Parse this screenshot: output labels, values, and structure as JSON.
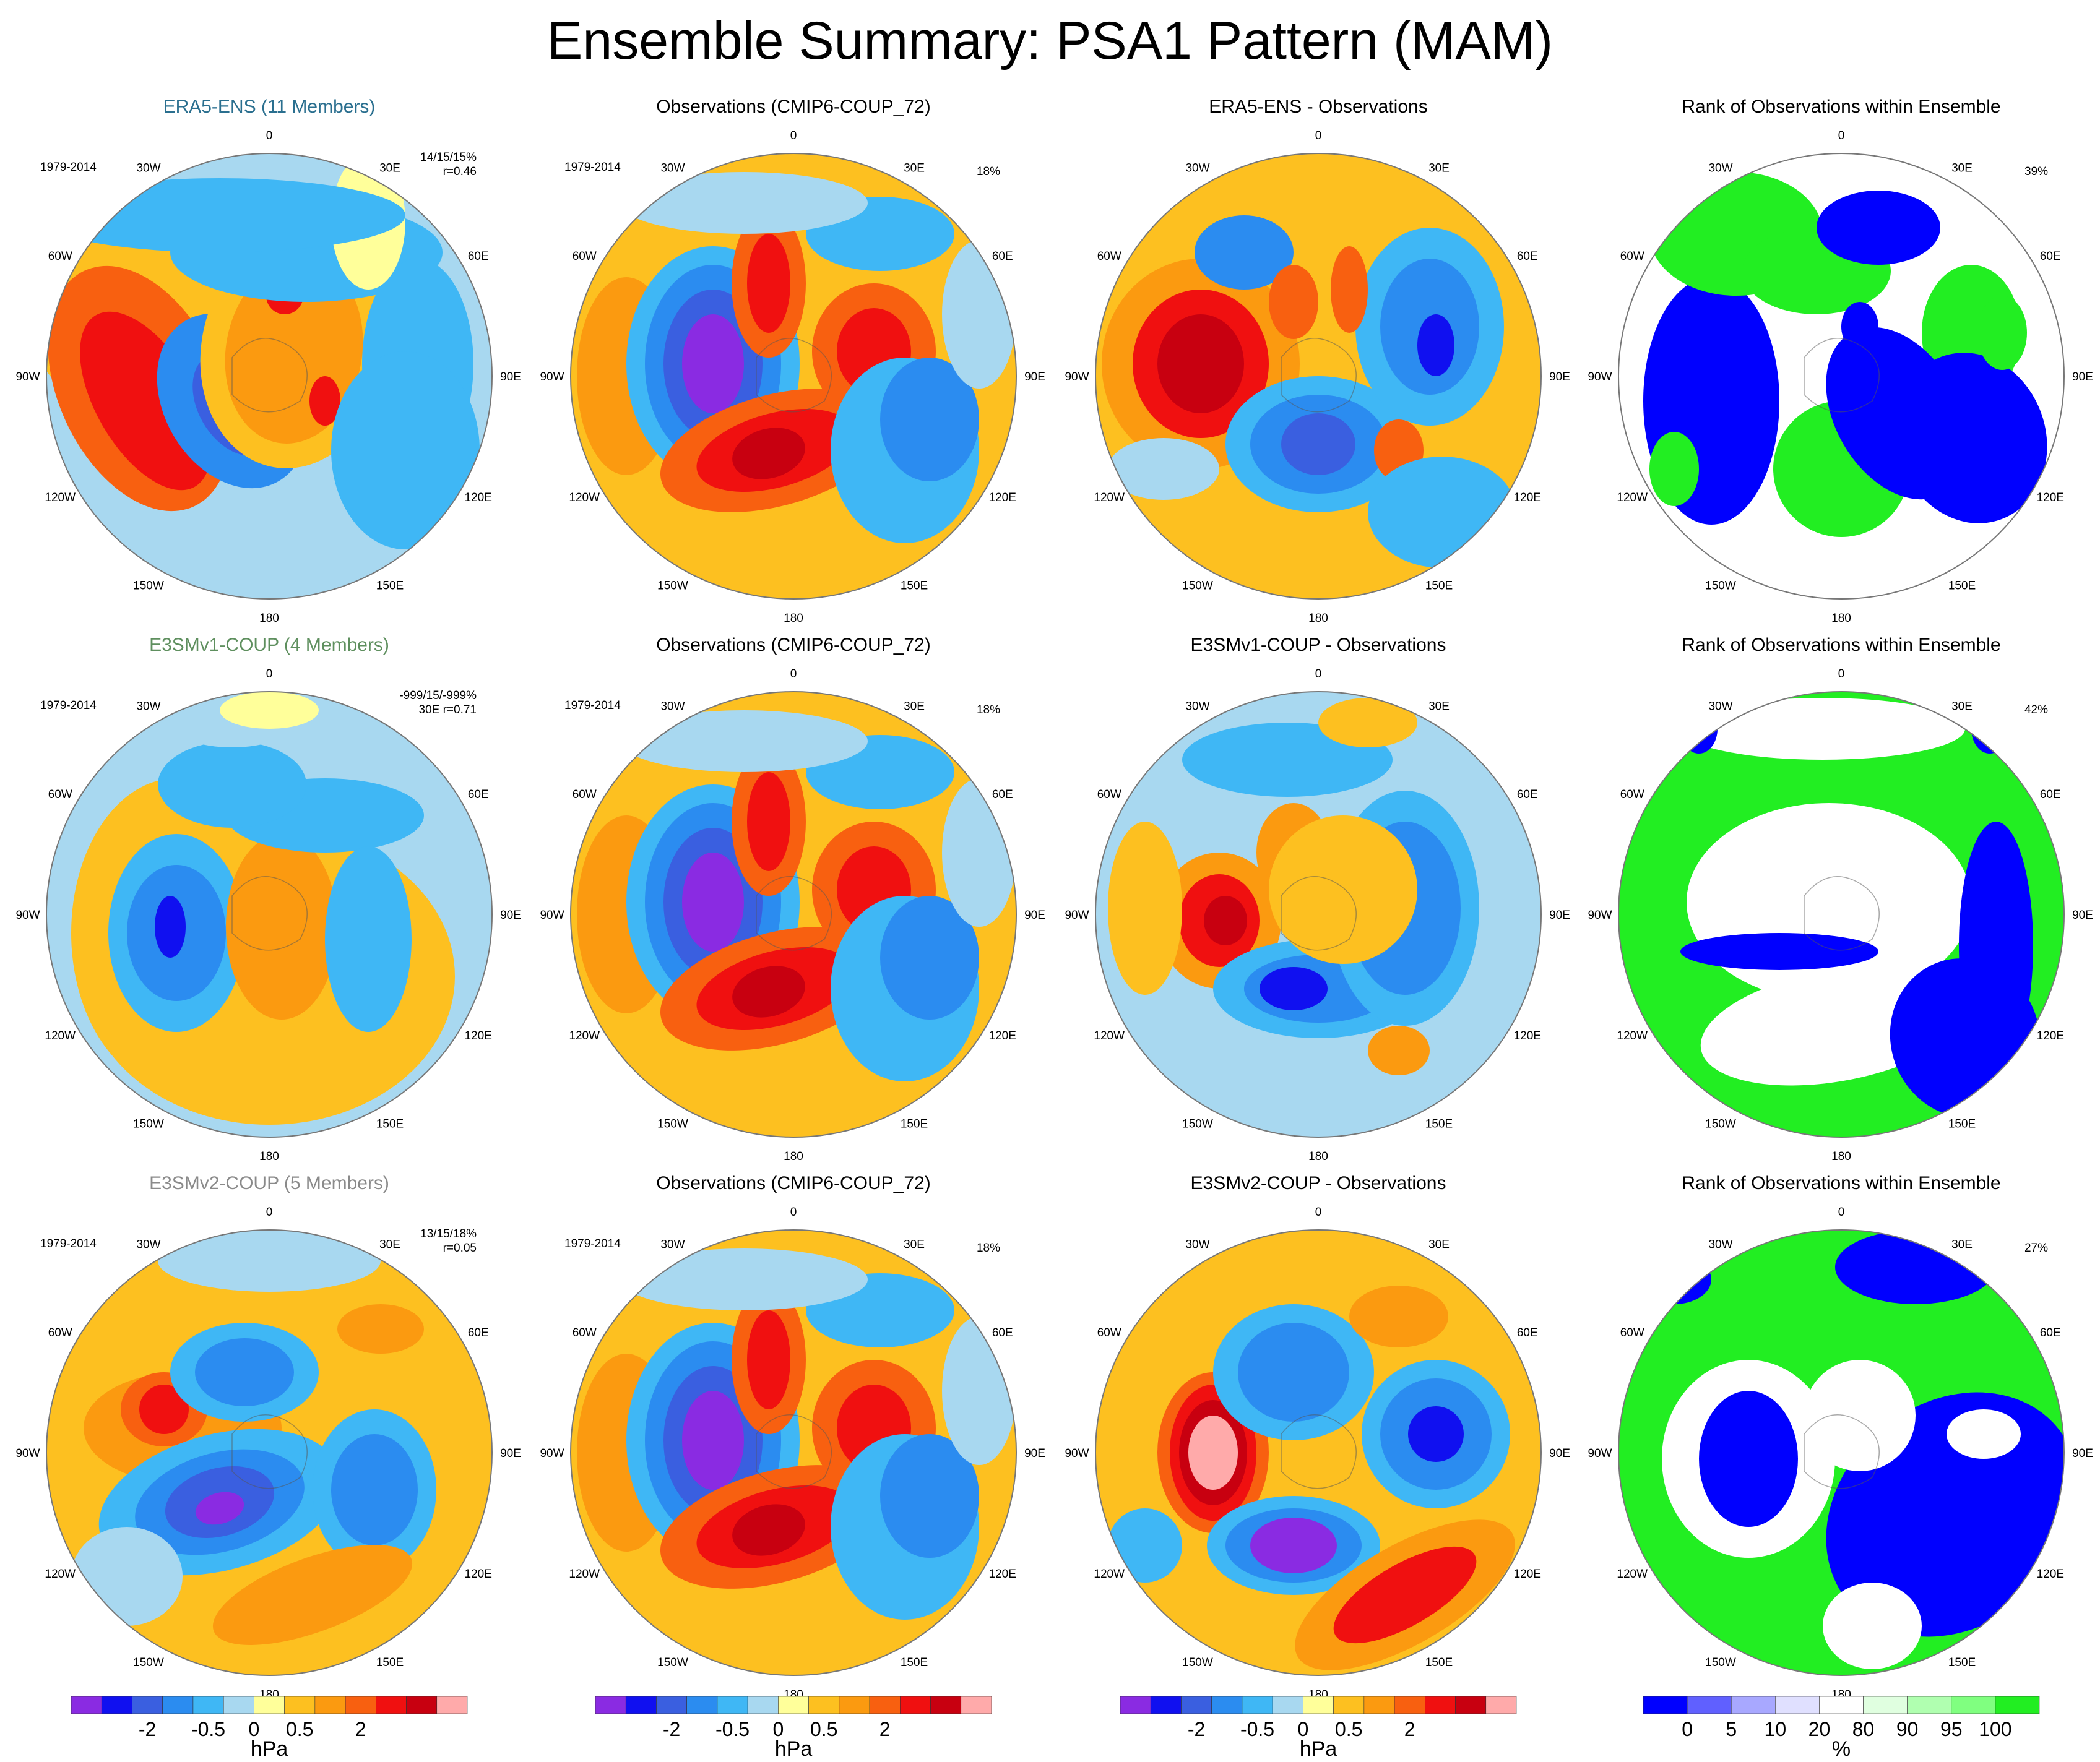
{
  "title": "Ensemble Summary: PSA1 Pattern (MAM)",
  "colorbar_colors": [
    "#8a2be2",
    "#1010f0",
    "#3a5fe0",
    "#2b8cf0",
    "#3fb7f5",
    "#a8d8f0",
    "#ffff9a",
    "#fdc020",
    "#fb9a10",
    "#f86010",
    "#f01010",
    "#c80010",
    "#ffaaaa"
  ],
  "colorbar_labels": [
    "-2",
    "-0.5",
    "0",
    "0.5",
    "2"
  ],
  "colorbar_unit": "hPa",
  "rank_colors": [
    "#0000ff",
    "#6060ff",
    "#a8a8ff",
    "#e0e0ff",
    "#ffffff",
    "#e0ffe0",
    "#b0ffb0",
    "#80ff80",
    "#22ee22"
  ],
  "rank_labels": [
    "0",
    "5",
    "10",
    "20",
    "80",
    "90",
    "95",
    "100"
  ],
  "rank_unit": "%",
  "lon_labels": {
    "l0": "0",
    "l30e": "30E",
    "l60e": "60E",
    "l90e": "90E",
    "l120e": "120E",
    "l150e": "150E",
    "l180": "180",
    "l150w": "150W",
    "l120w": "120W",
    "l90w": "90W",
    "l60w": "60W",
    "l30w": "30W"
  },
  "panels": [
    {
      "title": "ERA5-ENS (11 Members)",
      "title_color": "#2a6f8f",
      "period": "1979-2014",
      "stat1": "14/15/15%",
      "stat2": "r=0.46",
      "pct": ""
    },
    {
      "title": "Observations (CMIP6-COUP_72)",
      "title_color": "#000000",
      "period": "1979-2014",
      "stat1": "",
      "stat2": "",
      "pct": "18%"
    },
    {
      "title": "ERA5-ENS - Observations",
      "title_color": "#000000",
      "period": "",
      "stat1": "",
      "stat2": "",
      "pct": ""
    },
    {
      "title": "Rank of Observations within Ensemble",
      "title_color": "#000000",
      "period": "",
      "stat1": "",
      "stat2": "",
      "pct": "39%"
    },
    {
      "title": "E3SMv1-COUP (4 Members)",
      "title_color": "#5e8f5e",
      "period": "1979-2014",
      "stat1": "-999/15/-999%",
      "stat2": "30E r=0.71",
      "pct": ""
    },
    {
      "title": "Observations (CMIP6-COUP_72)",
      "title_color": "#000000",
      "period": "1979-2014",
      "stat1": "",
      "stat2": "",
      "pct": "18%"
    },
    {
      "title": "E3SMv1-COUP - Observations",
      "title_color": "#000000",
      "period": "",
      "stat1": "",
      "stat2": "",
      "pct": ""
    },
    {
      "title": "Rank of Observations within Ensemble",
      "title_color": "#000000",
      "period": "",
      "stat1": "",
      "stat2": "",
      "pct": "42%"
    },
    {
      "title": "E3SMv2-COUP (5 Members)",
      "title_color": "#8a8a8a",
      "period": "1979-2014",
      "stat1": "13/15/18%",
      "stat2": "r=0.05",
      "pct": ""
    },
    {
      "title": "Observations (CMIP6-COUP_72)",
      "title_color": "#000000",
      "period": "1979-2014",
      "stat1": "",
      "stat2": "",
      "pct": "18%"
    },
    {
      "title": "E3SMv2-COUP - Observations",
      "title_color": "#000000",
      "period": "",
      "stat1": "",
      "stat2": "",
      "pct": ""
    },
    {
      "title": "Rank of Observations within Ensemble",
      "title_color": "#000000",
      "period": "",
      "stat1": "",
      "stat2": "",
      "pct": "27%"
    }
  ],
  "chart_data": {
    "type": "heatmap",
    "projection": "south polar stereographic",
    "layout": "3 rows x 4 columns of polar maps",
    "colorbar_range_hPa": [
      "-2",
      "2"
    ],
    "rank_range_percent": [
      0,
      100
    ]
  }
}
